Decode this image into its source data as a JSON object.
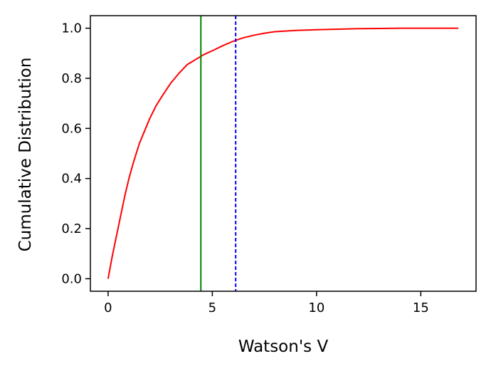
{
  "chart_data": {
    "type": "line",
    "title": "",
    "xlabel": "Watson's V",
    "ylabel": "Cumulative Distribution",
    "xlim": [
      -0.85,
      17.65
    ],
    "ylim": [
      -0.05,
      1.05
    ],
    "x_ticks": [
      0,
      5,
      10,
      15
    ],
    "x_tick_labels": [
      "0",
      "5",
      "10",
      "15"
    ],
    "y_ticks": [
      0.0,
      0.2,
      0.4,
      0.6,
      0.8,
      1.0
    ],
    "y_tick_labels": [
      "0.0",
      "0.2",
      "0.4",
      "0.6",
      "0.8",
      "1.0"
    ],
    "grid": false,
    "series": [
      {
        "color": "#ff0000",
        "x": [
          0,
          0.2,
          0.4,
          0.6,
          0.8,
          1.0,
          1.2,
          1.5,
          1.8,
          2.0,
          2.3,
          2.6,
          3.0,
          3.4,
          3.8,
          4.2,
          4.6,
          5.0,
          5.5,
          6.0,
          6.5,
          7.0,
          7.5,
          8.0,
          9.0,
          10.0,
          11.0,
          12.0,
          13.0,
          14.0,
          15.0,
          16.0,
          16.8
        ],
        "y": [
          0.0,
          0.09,
          0.17,
          0.25,
          0.33,
          0.4,
          0.46,
          0.54,
          0.6,
          0.64,
          0.69,
          0.73,
          0.78,
          0.82,
          0.855,
          0.875,
          0.895,
          0.91,
          0.93,
          0.948,
          0.962,
          0.972,
          0.98,
          0.986,
          0.991,
          0.994,
          0.996,
          0.998,
          0.999,
          1.0,
          1.0,
          1.0,
          1.0
        ]
      }
    ],
    "vlines": [
      {
        "x": 4.45,
        "color": "#008000",
        "style": "solid"
      },
      {
        "x": 6.12,
        "color": "#0000ff",
        "style": "dashed"
      }
    ]
  }
}
